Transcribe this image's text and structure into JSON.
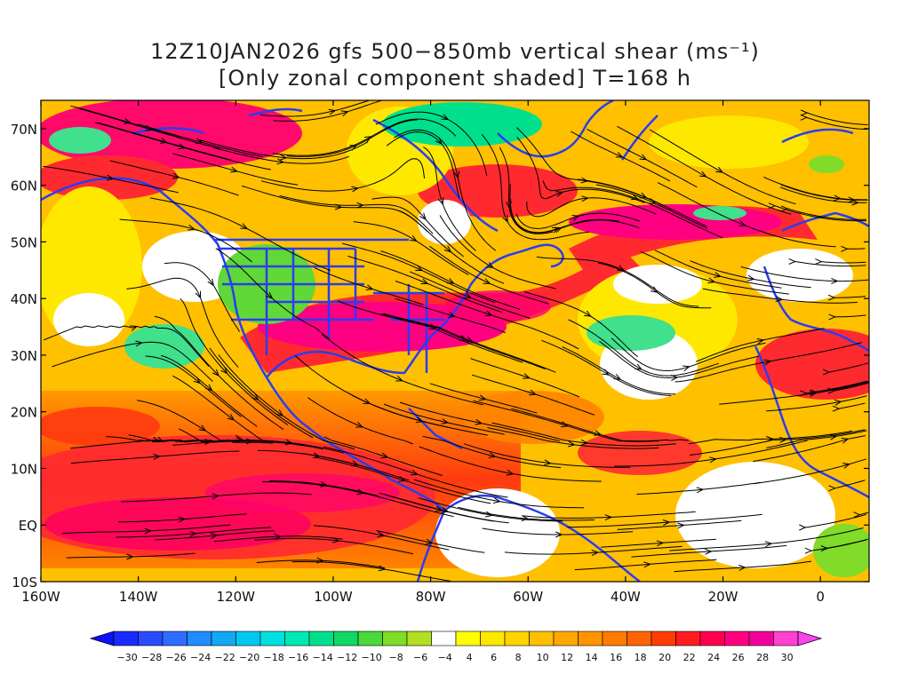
{
  "title": {
    "line1": "12Z10JAN2026 gfs 500−850mb vertical shear (ms⁻¹)",
    "line2": "[Only zonal component shaded] T=168 h"
  },
  "axes": {
    "lon_range": [
      -160,
      10
    ],
    "lat_range": [
      -10,
      75
    ],
    "lon_ticks": [
      {
        "value": -160,
        "label": "160W"
      },
      {
        "value": -140,
        "label": "140W"
      },
      {
        "value": -120,
        "label": "120W"
      },
      {
        "value": -100,
        "label": "100W"
      },
      {
        "value": -80,
        "label": "80W"
      },
      {
        "value": -60,
        "label": "60W"
      },
      {
        "value": -40,
        "label": "40W"
      },
      {
        "value": -20,
        "label": "20W"
      },
      {
        "value": 0,
        "label": "0"
      }
    ],
    "lat_ticks": [
      {
        "value": 70,
        "label": "70N"
      },
      {
        "value": 60,
        "label": "60N"
      },
      {
        "value": 50,
        "label": "50N"
      },
      {
        "value": 40,
        "label": "40N"
      },
      {
        "value": 30,
        "label": "30N"
      },
      {
        "value": 20,
        "label": "20N"
      },
      {
        "value": 10,
        "label": "10N"
      },
      {
        "value": 0,
        "label": "EQ"
      },
      {
        "value": -10,
        "label": "10S"
      }
    ]
  },
  "colorbar": {
    "labels": [
      "−30",
      "−28",
      "−26",
      "−24",
      "−22",
      "−20",
      "−18",
      "−16",
      "−14",
      "−12",
      "−10",
      "−8",
      "−6",
      "−4",
      "4",
      "6",
      "8",
      "10",
      "12",
      "14",
      "16",
      "18",
      "20",
      "22",
      "24",
      "26",
      "28",
      "30"
    ],
    "colors": [
      "#1a2bff",
      "#2a4cff",
      "#2e6cff",
      "#1e8cff",
      "#12a8f5",
      "#00c8f0",
      "#00e0e0",
      "#00e8b4",
      "#00e08c",
      "#10d864",
      "#4ad83a",
      "#80dc28",
      "#b0e020",
      "#ffffff",
      "#ffff00",
      "#ffe800",
      "#ffd400",
      "#ffc000",
      "#ffa800",
      "#ff9400",
      "#ff7c00",
      "#ff6400",
      "#ff3c00",
      "#ff1c20",
      "#ff0050",
      "#ff0080",
      "#f0009c",
      "#ff40d0"
    ],
    "under_color": "#0c10ff",
    "over_color": "#ff44ee"
  },
  "colors": {
    "coastline": "#2a3df0",
    "streamline": "#000000",
    "frame": "#000000"
  }
}
